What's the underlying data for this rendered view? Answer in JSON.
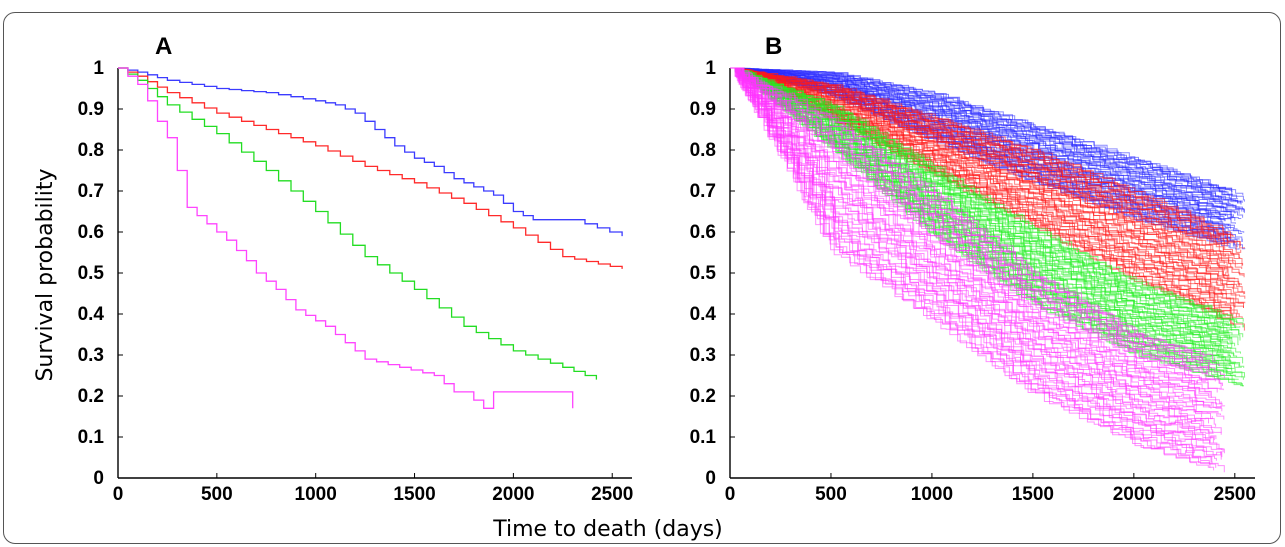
{
  "chart_data": [
    {
      "type": "line",
      "panel_label": "A",
      "xlabel": "Time to death (days)",
      "ylabel": "Survival probability",
      "xlim": [
        0,
        2600
      ],
      "ylim": [
        0,
        1
      ],
      "xticks": [
        0,
        500,
        1000,
        1500,
        2000,
        2500
      ],
      "yticks": [
        0,
        0.1,
        0.2,
        0.3,
        0.4,
        0.5,
        0.6,
        0.7,
        0.8,
        0.9,
        1
      ],
      "series": [
        {
          "color": "#3b3bff",
          "x": [
            0,
            100,
            250,
            500,
            750,
            1000,
            1100,
            1200,
            1300,
            1400,
            1500,
            1600,
            1700,
            1800,
            1900,
            2000,
            2100,
            2300,
            2550
          ],
          "y": [
            1,
            0.99,
            0.97,
            0.95,
            0.94,
            0.92,
            0.91,
            0.89,
            0.85,
            0.81,
            0.78,
            0.76,
            0.73,
            0.71,
            0.69,
            0.65,
            0.63,
            0.63,
            0.59
          ]
        },
        {
          "color": "#ff2a2a",
          "x": [
            0,
            100,
            250,
            500,
            750,
            1000,
            1250,
            1500,
            1750,
            2000,
            2250,
            2550
          ],
          "y": [
            1,
            0.98,
            0.94,
            0.89,
            0.85,
            0.81,
            0.76,
            0.72,
            0.67,
            0.61,
            0.54,
            0.51
          ]
        },
        {
          "color": "#22dd22",
          "x": [
            0,
            100,
            250,
            500,
            750,
            1000,
            1250,
            1500,
            1750,
            2000,
            2250,
            2420
          ],
          "y": [
            1,
            0.97,
            0.91,
            0.84,
            0.75,
            0.65,
            0.54,
            0.46,
            0.37,
            0.31,
            0.27,
            0.24
          ]
        },
        {
          "color": "#ff44ff",
          "x": [
            0,
            100,
            150,
            200,
            250,
            300,
            350,
            450,
            550,
            650,
            700,
            800,
            900,
            1050,
            1150,
            1250,
            1600,
            1700,
            1750,
            1850,
            1900,
            2300,
            2300
          ],
          "y": [
            1,
            0.96,
            0.92,
            0.87,
            0.83,
            0.75,
            0.66,
            0.62,
            0.58,
            0.53,
            0.5,
            0.46,
            0.41,
            0.37,
            0.33,
            0.29,
            0.25,
            0.21,
            0.21,
            0.17,
            0.21,
            0.21,
            0.17
          ]
        }
      ]
    },
    {
      "type": "line",
      "panel_label": "B",
      "xlim": [
        0,
        2600
      ],
      "ylim": [
        0,
        1
      ],
      "xticks": [
        0,
        500,
        1000,
        1500,
        2000,
        2500
      ],
      "yticks": [
        0,
        0.1,
        0.2,
        0.3,
        0.4,
        0.5,
        0.6,
        0.7,
        0.8,
        0.9,
        1
      ],
      "bands": [
        {
          "color": "#2a2aff",
          "x": [
            0,
            500,
            1000,
            1500,
            2000,
            2550
          ],
          "y_low": [
            1,
            0.93,
            0.82,
            0.72,
            0.63,
            0.55
          ],
          "y_high": [
            1,
            0.99,
            0.94,
            0.86,
            0.78,
            0.69
          ]
        },
        {
          "color": "#ff1a1a",
          "x": [
            0,
            500,
            1000,
            1500,
            2000,
            2550
          ],
          "y_low": [
            1,
            0.87,
            0.74,
            0.61,
            0.48,
            0.36
          ],
          "y_high": [
            1,
            0.96,
            0.88,
            0.8,
            0.7,
            0.58
          ]
        },
        {
          "color": "#22ee22",
          "x": [
            0,
            500,
            1000,
            1500,
            2000,
            2550
          ],
          "y_low": [
            1,
            0.8,
            0.59,
            0.42,
            0.3,
            0.22
          ],
          "y_high": [
            1,
            0.91,
            0.76,
            0.61,
            0.48,
            0.38
          ]
        },
        {
          "color": "#ff33ff",
          "x": [
            0,
            500,
            1000,
            1500,
            2000,
            2450
          ],
          "y_low": [
            1,
            0.55,
            0.38,
            0.2,
            0.08,
            0.01
          ],
          "y_high": [
            1,
            0.88,
            0.7,
            0.5,
            0.36,
            0.28
          ]
        }
      ]
    }
  ]
}
